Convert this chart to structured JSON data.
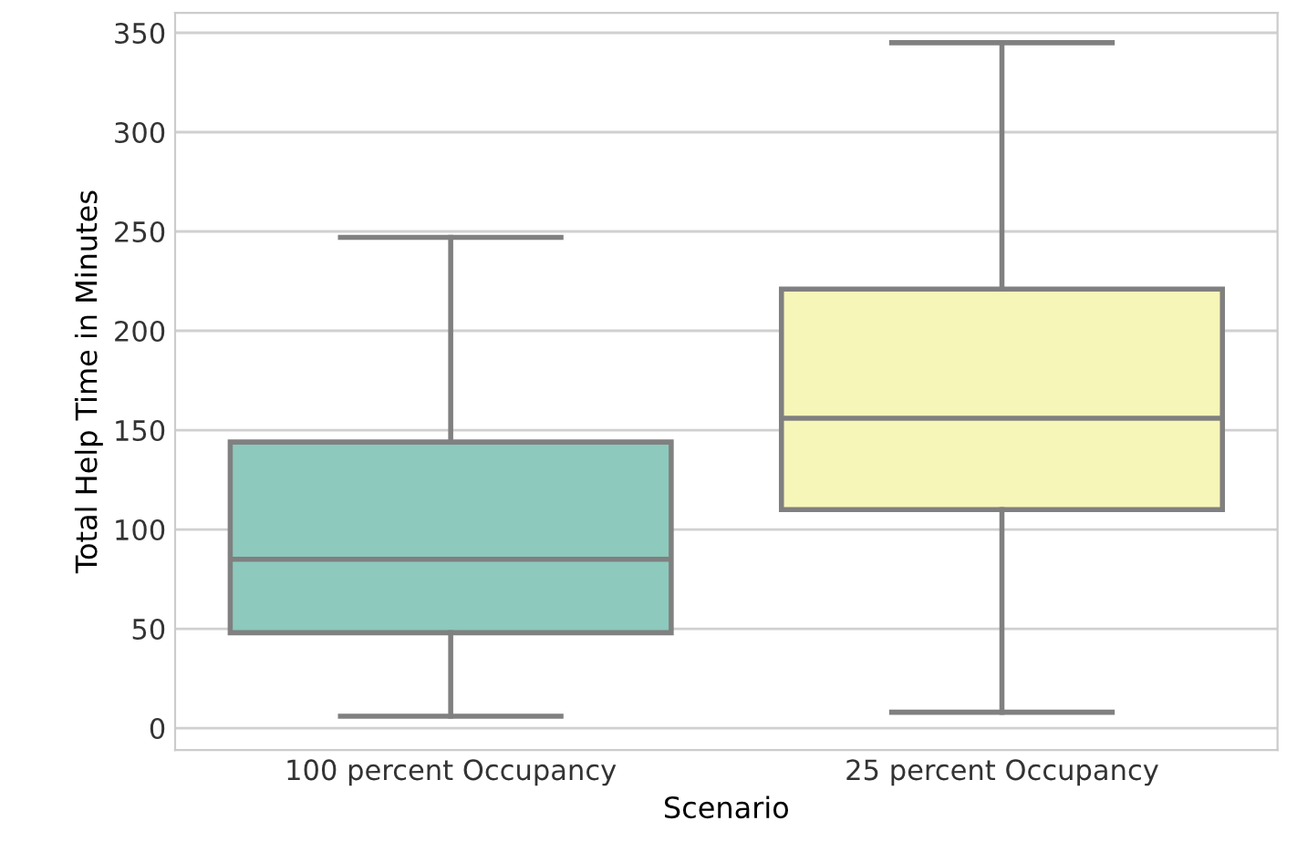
{
  "chart_data": {
    "type": "box",
    "xlabel": "Scenario",
    "ylabel": "Total Help Time in Minutes",
    "categories": [
      "100 percent Occupancy",
      "25 percent Occupancy"
    ],
    "colors": [
      "#8dc9bd",
      "#f7f6b9"
    ],
    "boxes": [
      {
        "low": 6,
        "q1": 48,
        "median": 85,
        "q3": 144,
        "high": 247
      },
      {
        "low": 8,
        "q1": 110,
        "median": 156,
        "q3": 221,
        "high": 345
      }
    ],
    "ylim": [
      -11,
      360
    ],
    "yticks": [
      0,
      50,
      100,
      150,
      200,
      250,
      300,
      350
    ],
    "grid": "y"
  }
}
